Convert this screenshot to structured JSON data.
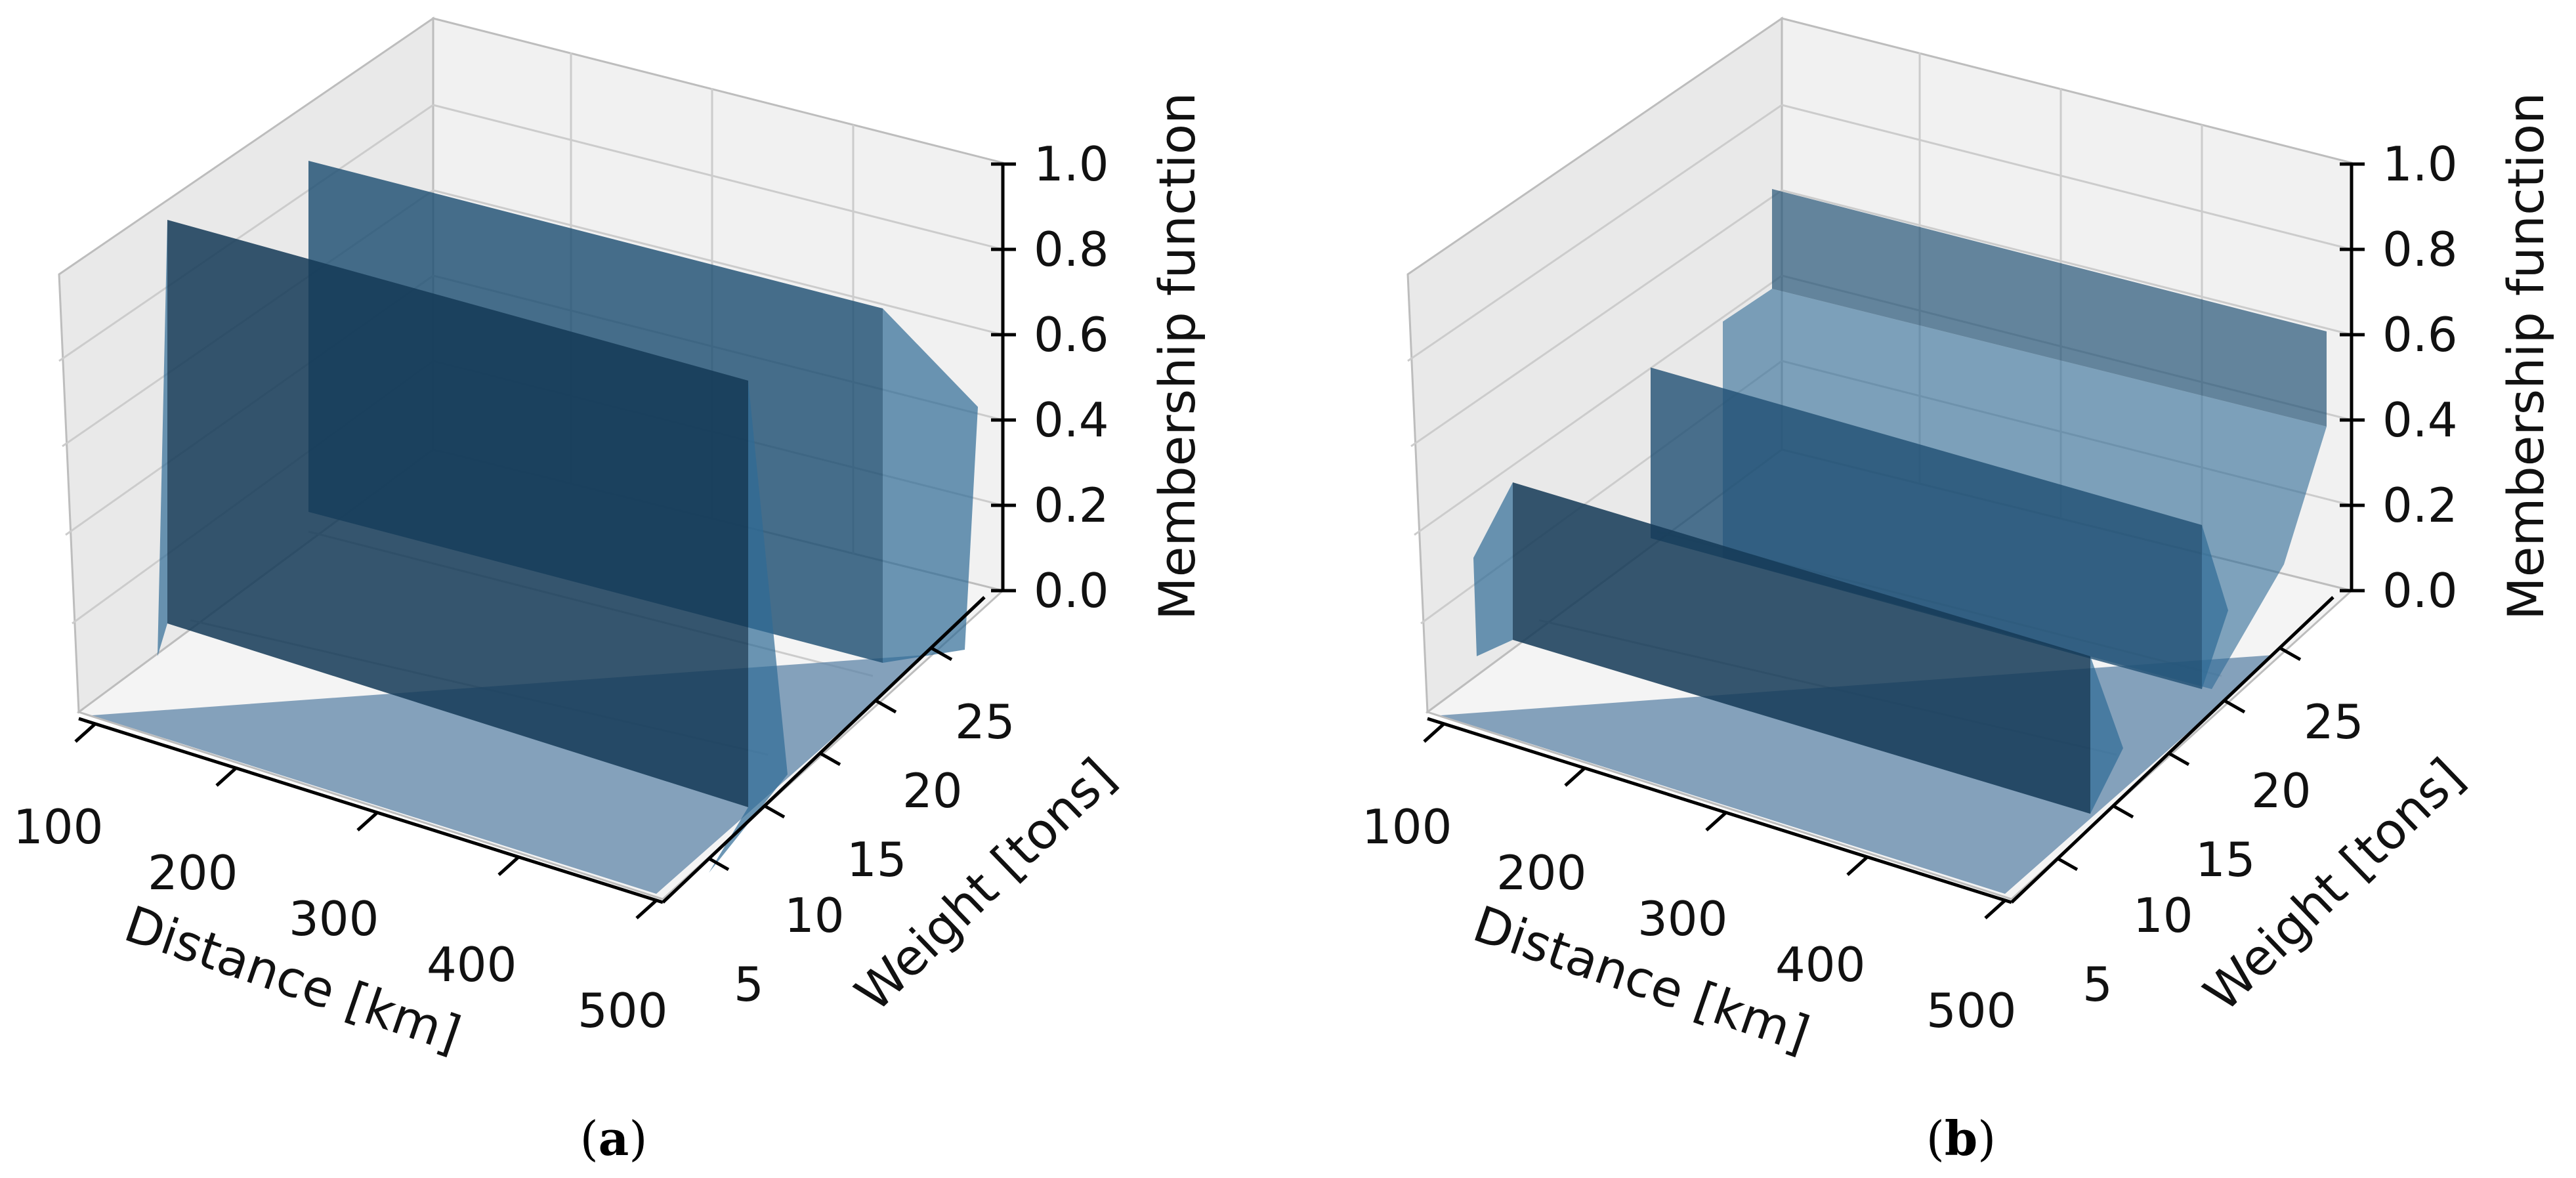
{
  "chart_data": [
    {
      "type": "surface3d",
      "panel_label": "a",
      "xlabel": "Distance [km]",
      "ylabel": "Weight [tons]",
      "zlabel": "Membership function",
      "x_ticks": [
        "100",
        "200",
        "300",
        "400",
        "500"
      ],
      "y_ticks": [
        "5",
        "10",
        "15",
        "20",
        "25"
      ],
      "z_ticks": [
        "0.0",
        "0.2",
        "0.4",
        "0.6",
        "0.8",
        "1.0"
      ],
      "xlim": [
        100,
        500
      ],
      "ylim": [
        5,
        30
      ],
      "zlim": [
        0,
        1
      ],
      "surfaces": [
        {
          "name": "surface-front",
          "weight_plateau": [
            5,
            12
          ],
          "membership": 1.0
        },
        {
          "name": "surface-rear",
          "weight_plateau": [
            18,
            30
          ],
          "membership": 1.0
        }
      ]
    },
    {
      "type": "surface3d",
      "panel_label": "b",
      "xlabel": "Distance [km]",
      "ylabel": "Weight [tons]",
      "zlabel": "Membership function",
      "x_ticks": [
        "100",
        "200",
        "300",
        "400",
        "500"
      ],
      "y_ticks": [
        "5",
        "10",
        "15",
        "20",
        "25"
      ],
      "z_ticks": [
        "0.0",
        "0.2",
        "0.4",
        "0.6",
        "0.8",
        "1.0"
      ],
      "xlim": [
        100,
        500
      ],
      "ylim": [
        5,
        30
      ],
      "zlim": [
        0,
        1
      ],
      "surfaces": [
        {
          "name": "surface-front",
          "weight_plateau": [
            7,
            12
          ],
          "membership": 0.5
        },
        {
          "name": "surface-middle",
          "weight_plateau": [
            15,
            20
          ],
          "membership": 0.5
        },
        {
          "name": "surface-rear",
          "weight_plateau": [
            23,
            30
          ],
          "membership": 1.0
        }
      ]
    }
  ],
  "captions": {
    "a_open": "(",
    "a_letter": "a",
    "a_close": ")",
    "b_open": "(",
    "b_letter": "b",
    "b_close": ")"
  },
  "colors": {
    "surface": "#1f4f73",
    "surface_dark": "#153a57",
    "floor": "#5f86a8",
    "pane": "#f0f0f0",
    "grid": "#c8c8c8",
    "axis": "#000000"
  }
}
